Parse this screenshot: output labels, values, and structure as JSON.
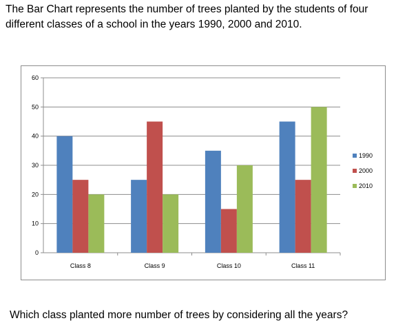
{
  "intro_text": "The Bar Chart represents the number of trees planted by the students of four different classes of a school in the years 1990, 2000 and 2010.",
  "question_text": "Which class planted more number of trees by considering all the years?",
  "chart_data": {
    "type": "bar",
    "title": "",
    "xlabel": "",
    "ylabel": "",
    "categories": [
      "Class 8",
      "Class 9",
      "Class 10",
      "Class 11"
    ],
    "series": [
      {
        "name": "1990",
        "values": [
          40,
          25,
          35,
          45
        ],
        "color": "#4f81bd"
      },
      {
        "name": "2000",
        "values": [
          25,
          45,
          15,
          25
        ],
        "color": "#c0504d"
      },
      {
        "name": "2010",
        "values": [
          20,
          20,
          30,
          50
        ],
        "color": "#9bbb59"
      }
    ],
    "ylim": [
      0,
      60
    ],
    "yticks": [
      "0",
      "10",
      "20",
      "30",
      "40",
      "50",
      "60"
    ],
    "grid": true,
    "legend": "right"
  }
}
